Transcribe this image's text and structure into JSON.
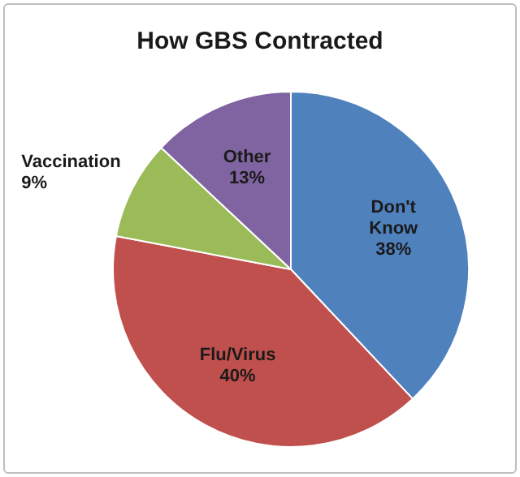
{
  "chart_data": {
    "type": "pie",
    "title": "How GBS Contracted",
    "categories": [
      "Don't Know",
      "Flu/Virus",
      "Vaccination",
      "Other"
    ],
    "values": [
      38,
      40,
      9,
      13
    ],
    "colors": [
      "#4f81bd",
      "#c0504d",
      "#9bbb59",
      "#8064a2"
    ],
    "value_labels": [
      "38%",
      "40%",
      "9%",
      "13%"
    ],
    "legend": false
  }
}
